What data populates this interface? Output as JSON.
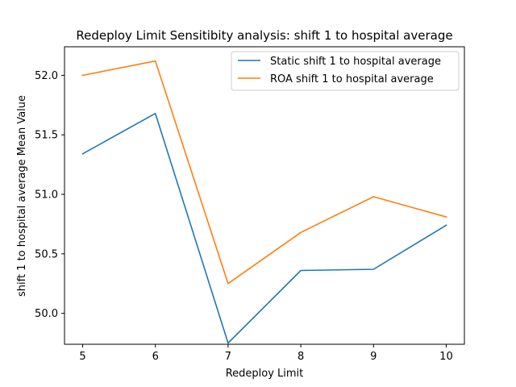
{
  "chart_data": {
    "type": "line",
    "title": "Redeploy Limit Sensitibity analysis: shift 1 to hospital average",
    "xlabel": "Redeploy Limit",
    "ylabel": "shift 1 to hospital average Mean Value",
    "x": [
      5,
      6,
      7,
      8,
      9,
      10
    ],
    "xticks": [
      "5",
      "6",
      "7",
      "8",
      "9",
      "10"
    ],
    "yticks": [
      "50.0",
      "50.5",
      "51.0",
      "51.5",
      "52.0"
    ],
    "xlim": [
      4.75,
      10.25
    ],
    "ylim": [
      49.74,
      52.24
    ],
    "grid": false,
    "legend_position": "upper-right",
    "series": [
      {
        "name": "Static shift 1 to hospital average",
        "color": "#1f77b4",
        "values": [
          51.34,
          51.68,
          49.75,
          50.36,
          50.37,
          50.74
        ]
      },
      {
        "name": "ROA shift 1 to hospital average",
        "color": "#ff7f0e",
        "values": [
          52.0,
          52.12,
          50.25,
          50.68,
          50.98,
          50.81
        ]
      }
    ]
  }
}
